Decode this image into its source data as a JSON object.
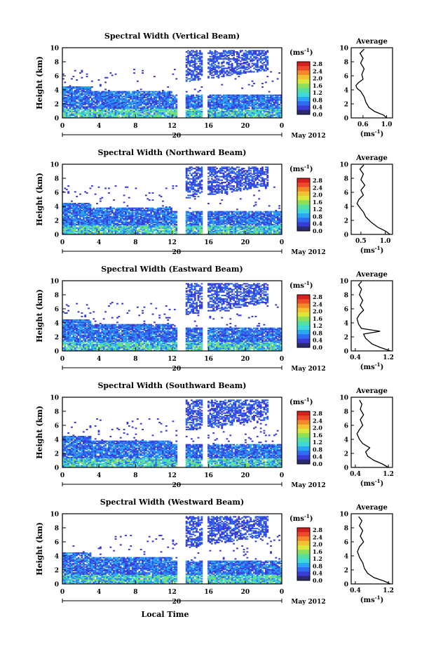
{
  "figure": {
    "xlabel": "Local Time",
    "date_label": "May 2012",
    "date_day": "20",
    "cb_unit_text": "(ms",
    "cb_unit_exp": "-1",
    "cb_unit_close": ")",
    "avg_unit_text": "(ms",
    "avg_unit_exp": "-1",
    "avg_unit_close": ")",
    "avg_title": "Average",
    "ylabel": "Height (km)"
  },
  "colorbar": {
    "ticks": [
      "2.8",
      "2.4",
      "2.0",
      "1.6",
      "1.2",
      "0.8",
      "0.4",
      "0.0"
    ],
    "colors": [
      "#2a2a6e",
      "#3b3bd6",
      "#2f6cf2",
      "#2aa6f2",
      "#3fd9d9",
      "#56e0a0",
      "#8ee05a",
      "#d9e83a",
      "#f2c230",
      "#f28a2a",
      "#ee4a2a",
      "#d62020"
    ]
  },
  "chart_data": [
    {
      "type": "heatmap",
      "title": "Spectral Width (Vertical Beam)",
      "ylabel": "Height (km)",
      "y_ticks": [
        "0",
        "2",
        "4",
        "6",
        "8",
        "10"
      ],
      "x_ticks": [
        "0",
        "4",
        "8",
        "12",
        "16",
        "20",
        "0"
      ],
      "ylim": [
        0,
        10
      ],
      "xlim": [
        0,
        24
      ],
      "avg_x_ticks": [
        "0.6",
        "1.0"
      ],
      "avg_xlim": [
        0.4,
        1.1
      ],
      "avg_profile": [
        [
          1.0,
          0
        ],
        [
          0.95,
          0.4
        ],
        [
          0.8,
          0.9
        ],
        [
          0.7,
          1.5
        ],
        [
          0.65,
          2.2
        ],
        [
          0.62,
          3.0
        ],
        [
          0.56,
          3.8
        ],
        [
          0.5,
          4.2
        ],
        [
          0.48,
          4.6
        ],
        [
          0.52,
          5.0
        ],
        [
          0.6,
          5.5
        ],
        [
          0.58,
          6.2
        ],
        [
          0.62,
          7.0
        ],
        [
          0.56,
          7.8
        ],
        [
          0.6,
          8.5
        ],
        [
          0.55,
          9.2
        ],
        [
          0.62,
          9.8
        ]
      ]
    },
    {
      "type": "heatmap",
      "title": "Spectral Width (Northward Beam)",
      "ylabel": "Height (km)",
      "y_ticks": [
        "0",
        "2",
        "4",
        "6",
        "8",
        "10"
      ],
      "x_ticks": [
        "0",
        "4",
        "8",
        "12",
        "16",
        "20",
        "0"
      ],
      "ylim": [
        0,
        10
      ],
      "xlim": [
        0,
        24
      ],
      "avg_x_ticks": [
        "0.5",
        "1.0"
      ],
      "avg_xlim": [
        0.3,
        1.15
      ],
      "avg_profile": [
        [
          1.1,
          0
        ],
        [
          1.0,
          0.5
        ],
        [
          0.85,
          1.0
        ],
        [
          0.7,
          1.8
        ],
        [
          0.6,
          2.5
        ],
        [
          0.55,
          3.2
        ],
        [
          0.48,
          3.8
        ],
        [
          0.42,
          4.4
        ],
        [
          0.46,
          5.0
        ],
        [
          0.55,
          5.6
        ],
        [
          0.5,
          6.3
        ],
        [
          0.58,
          7.0
        ],
        [
          0.5,
          7.8
        ],
        [
          0.55,
          8.6
        ],
        [
          0.48,
          9.3
        ],
        [
          0.56,
          9.9
        ]
      ]
    },
    {
      "type": "heatmap",
      "title": "Spectral Width (Eastward Beam)",
      "ylabel": "Height (km)",
      "y_ticks": [
        "0",
        "2",
        "4",
        "6",
        "8",
        "10"
      ],
      "x_ticks": [
        "0",
        "4",
        "8",
        "12",
        "16",
        "20",
        "0"
      ],
      "ylim": [
        0,
        10
      ],
      "xlim": [
        0,
        24
      ],
      "avg_x_ticks": [
        "0.4",
        "1.2"
      ],
      "avg_xlim": [
        0.3,
        1.3
      ],
      "avg_profile": [
        [
          1.25,
          0
        ],
        [
          1.0,
          0.5
        ],
        [
          0.8,
          1.0
        ],
        [
          0.65,
          1.8
        ],
        [
          0.6,
          2.4
        ],
        [
          1.0,
          2.8
        ],
        [
          0.55,
          3.2
        ],
        [
          0.48,
          3.8
        ],
        [
          0.44,
          4.6
        ],
        [
          0.5,
          5.2
        ],
        [
          0.6,
          5.8
        ],
        [
          0.52,
          6.5
        ],
        [
          0.58,
          7.2
        ],
        [
          0.5,
          8.0
        ],
        [
          0.55,
          8.8
        ],
        [
          0.48,
          9.4
        ],
        [
          0.55,
          9.9
        ]
      ]
    },
    {
      "type": "heatmap",
      "title": "Spectral Width (Southward Beam)",
      "ylabel": "Height (km)",
      "y_ticks": [
        "0",
        "2",
        "4",
        "6",
        "8",
        "10"
      ],
      "x_ticks": [
        "0",
        "4",
        "8",
        "12",
        "16",
        "20",
        "0"
      ],
      "ylim": [
        0,
        10
      ],
      "xlim": [
        0,
        24
      ],
      "avg_x_ticks": [
        "0.4",
        "1.2"
      ],
      "avg_xlim": [
        0.3,
        1.3
      ],
      "avg_profile": [
        [
          1.2,
          0
        ],
        [
          1.05,
          0.5
        ],
        [
          0.85,
          1.0
        ],
        [
          0.7,
          1.6
        ],
        [
          0.65,
          2.2
        ],
        [
          0.75,
          2.8
        ],
        [
          0.58,
          3.4
        ],
        [
          0.5,
          4.0
        ],
        [
          0.44,
          4.8
        ],
        [
          0.5,
          5.4
        ],
        [
          0.58,
          6.0
        ],
        [
          0.52,
          6.8
        ],
        [
          0.6,
          7.5
        ],
        [
          0.52,
          8.3
        ],
        [
          0.56,
          9.0
        ],
        [
          0.5,
          9.6
        ]
      ]
    },
    {
      "type": "heatmap",
      "title": "Spectral Width (Westward Beam)",
      "ylabel": "Height (km)",
      "y_ticks": [
        "0",
        "2",
        "4",
        "6",
        "8",
        "10"
      ],
      "x_ticks": [
        "0",
        "4",
        "8",
        "12",
        "16",
        "20",
        "0"
      ],
      "ylim": [
        0,
        10
      ],
      "xlim": [
        0,
        24
      ],
      "avg_x_ticks": [
        "0.4",
        "1.2"
      ],
      "avg_xlim": [
        0.3,
        1.3
      ],
      "avg_profile": [
        [
          1.25,
          0
        ],
        [
          1.1,
          0.4
        ],
        [
          0.85,
          0.9
        ],
        [
          0.7,
          1.5
        ],
        [
          0.62,
          2.2
        ],
        [
          0.58,
          3.0
        ],
        [
          0.5,
          3.8
        ],
        [
          0.45,
          4.6
        ],
        [
          0.5,
          5.3
        ],
        [
          0.6,
          6.0
        ],
        [
          0.52,
          6.8
        ],
        [
          0.58,
          7.6
        ],
        [
          0.5,
          8.3
        ],
        [
          0.56,
          9.0
        ],
        [
          0.48,
          9.6
        ]
      ]
    }
  ]
}
